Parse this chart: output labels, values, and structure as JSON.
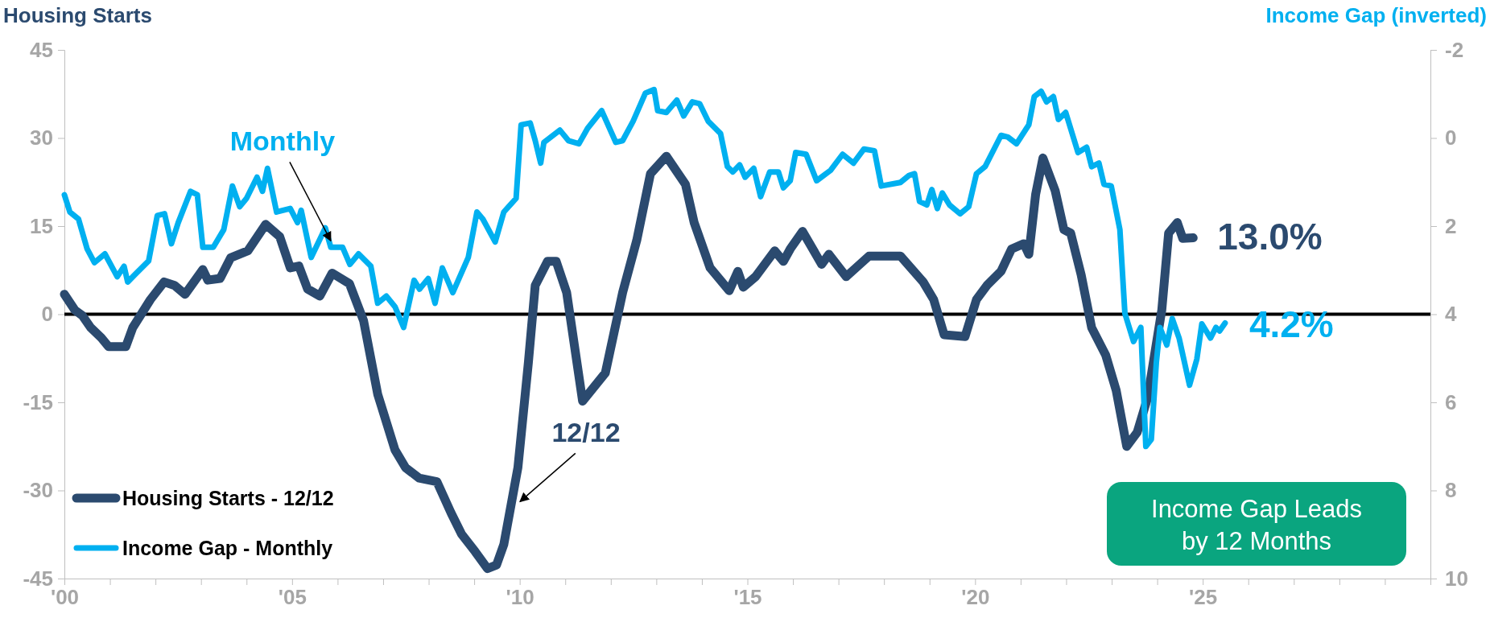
{
  "chart_data": {
    "type": "line",
    "ylabel": "Housing Starts",
    "y2label": "Income Gap (inverted)",
    "xlim": [
      2000,
      2030
    ],
    "xticks": [
      {
        "value": 2000,
        "label": "'00"
      },
      {
        "value": 2001,
        "label": null
      },
      {
        "value": 2002,
        "label": null
      },
      {
        "value": 2003,
        "label": null
      },
      {
        "value": 2004,
        "label": null
      },
      {
        "value": 2005,
        "label": "'05"
      },
      {
        "value": 2006,
        "label": null
      },
      {
        "value": 2007,
        "label": null
      },
      {
        "value": 2008,
        "label": null
      },
      {
        "value": 2009,
        "label": null
      },
      {
        "value": 2010,
        "label": "'10"
      },
      {
        "value": 2011,
        "label": null
      },
      {
        "value": 2012,
        "label": null
      },
      {
        "value": 2013,
        "label": null
      },
      {
        "value": 2014,
        "label": null
      },
      {
        "value": 2015,
        "label": "'15"
      },
      {
        "value": 2016,
        "label": null
      },
      {
        "value": 2017,
        "label": null
      },
      {
        "value": 2018,
        "label": null
      },
      {
        "value": 2019,
        "label": null
      },
      {
        "value": 2020,
        "label": "'20"
      },
      {
        "value": 2021,
        "label": null
      },
      {
        "value": 2022,
        "label": null
      },
      {
        "value": 2023,
        "label": null
      },
      {
        "value": 2024,
        "label": null
      },
      {
        "value": 2025,
        "label": "'25"
      },
      {
        "value": 2026,
        "label": null
      },
      {
        "value": 2027,
        "label": null
      },
      {
        "value": 2028,
        "label": null
      },
      {
        "value": 2029,
        "label": null
      },
      {
        "value": 2030,
        "label": null
      }
    ],
    "ylim": [
      -45,
      45
    ],
    "yticks": [
      -45,
      -30,
      -15,
      0,
      15,
      30,
      45
    ],
    "y2lim": [
      10,
      -2
    ],
    "y2ticks": [
      -2,
      0,
      2,
      4,
      6,
      8,
      10
    ],
    "grid": false,
    "legend": "bottom left",
    "ref_lines": [
      {
        "axis": "y",
        "value": 0,
        "color": "#000000"
      }
    ],
    "annotations": [
      {
        "text": "Monthly",
        "x": 2005.85,
        "y": 11.4
      },
      {
        "text": "12/12",
        "x": 2009.9,
        "y": -33
      },
      "Income Gap Leads by 12 Months"
    ],
    "series": [
      {
        "name": "Housing Starts - 12/12",
        "color": "#2b4a6f",
        "x": [
          2000.0,
          2000.23,
          2000.39,
          2000.58,
          2000.81,
          2000.97,
          2001.35,
          2001.5,
          2001.89,
          2002.19,
          2002.42,
          2002.65,
          2003.04,
          2003.15,
          2003.42,
          2003.65,
          2004.03,
          2004.42,
          2004.73,
          2004.96,
          2005.15,
          2005.34,
          2005.61,
          2005.88,
          2006.26,
          2006.57,
          2006.88,
          2007.26,
          2007.49,
          2007.79,
          2008.18,
          2008.49,
          2008.72,
          2009.02,
          2009.29,
          2009.49,
          2009.65,
          2009.96,
          2010.19,
          2010.34,
          2010.61,
          2010.8,
          2011.03,
          2011.38,
          2011.88,
          2012.26,
          2012.57,
          2012.87,
          2013.22,
          2013.64,
          2013.83,
          2014.18,
          2014.6,
          2014.79,
          2014.91,
          2015.18,
          2015.6,
          2015.79,
          2015.94,
          2016.21,
          2016.63,
          2016.79,
          2017.17,
          2017.67,
          2018.36,
          2018.86,
          2019.09,
          2019.32,
          2019.78,
          2020.03,
          2020.26,
          2020.57,
          2020.8,
          2021.07,
          2021.18,
          2021.33,
          2021.49,
          2021.76,
          2021.95,
          2022.1,
          2022.33,
          2022.56,
          2022.87,
          2023.1,
          2023.33,
          2023.56,
          2023.79,
          2024.1,
          2024.25,
          2024.44,
          2024.56,
          2024.79
        ],
        "values": [
          3.4,
          0.7,
          -0.2,
          -2.3,
          -4.0,
          -5.5,
          -5.5,
          -2.3,
          2.5,
          5.5,
          4.9,
          3.4,
          7.6,
          5.8,
          6.1,
          9.6,
          10.8,
          15.3,
          13.2,
          7.9,
          8.2,
          4.3,
          3.1,
          7.0,
          5.2,
          -1.1,
          -13.6,
          -23.1,
          -26.1,
          -27.9,
          -28.5,
          -33.8,
          -37.4,
          -40.4,
          -43.3,
          -42.7,
          -39.2,
          -26.1,
          -8.2,
          4.9,
          9.0,
          9.0,
          3.7,
          -14.8,
          -10.0,
          3.7,
          12.6,
          23.9,
          26.9,
          22.1,
          15.6,
          7.9,
          4.0,
          7.3,
          4.6,
          6.4,
          10.8,
          9.0,
          11.1,
          14.1,
          8.5,
          10.2,
          6.4,
          9.9,
          9.9,
          5.5,
          2.5,
          -3.5,
          -3.8,
          2.5,
          4.9,
          7.3,
          11.1,
          12.0,
          10.2,
          20.4,
          26.6,
          21.0,
          14.4,
          13.8,
          6.7,
          -2.3,
          -7.0,
          -13.0,
          -22.5,
          -20.1,
          -14.2,
          0.7,
          13.8,
          15.6,
          12.9,
          13.0
        ],
        "value_labels": [
          null,
          null,
          null,
          null,
          null,
          null,
          null,
          null,
          null,
          null,
          null,
          null,
          null,
          null,
          null,
          null,
          null,
          null,
          null,
          null,
          null,
          null,
          null,
          null,
          null,
          null,
          null,
          null,
          null,
          null,
          null,
          null,
          null,
          null,
          null,
          null,
          null,
          null,
          null,
          null,
          null,
          null,
          null,
          null,
          null,
          null,
          null,
          null,
          null,
          null,
          null,
          null,
          null,
          null,
          null,
          null,
          null,
          null,
          null,
          null,
          null,
          null,
          null,
          null,
          null,
          null,
          null,
          null,
          null,
          null,
          null,
          null,
          null,
          null,
          null,
          null,
          null,
          null,
          null,
          null,
          null,
          null,
          null,
          null,
          null,
          null,
          null,
          null,
          null,
          null,
          null,
          "13.0%"
        ]
      },
      {
        "name": "Income Gap - Monthly",
        "color": "#00b0f0",
        "axis": "y2",
        "x": [
          2000.0,
          2000.12,
          2000.31,
          2000.5,
          2000.66,
          2000.89,
          2001.16,
          2001.31,
          2001.39,
          2001.54,
          2001.85,
          2002.04,
          2002.2,
          2002.35,
          2002.5,
          2002.77,
          2002.92,
          2003.04,
          2003.27,
          2003.5,
          2003.69,
          2003.85,
          2004.0,
          2004.23,
          2004.35,
          2004.46,
          2004.66,
          2004.96,
          2005.12,
          2005.2,
          2005.42,
          2005.73,
          2005.85,
          2006.11,
          2006.27,
          2006.46,
          2006.73,
          2006.88,
          2007.07,
          2007.26,
          2007.45,
          2007.68,
          2007.8,
          2007.99,
          2008.14,
          2008.3,
          2008.53,
          2008.87,
          2009.06,
          2009.19,
          2009.46,
          2009.65,
          2009.92,
          2010.03,
          2010.23,
          2010.34,
          2010.46,
          2010.53,
          2010.88,
          2011.07,
          2011.3,
          2011.49,
          2011.8,
          2012.11,
          2012.26,
          2012.49,
          2012.76,
          2012.95,
          2013.03,
          2013.22,
          2013.45,
          2013.6,
          2013.79,
          2013.95,
          2014.14,
          2014.41,
          2014.56,
          2014.68,
          2014.83,
          2014.95,
          2015.14,
          2015.29,
          2015.49,
          2015.68,
          2015.79,
          2015.94,
          2016.06,
          2016.29,
          2016.52,
          2016.83,
          2017.09,
          2017.33,
          2017.56,
          2017.79,
          2017.94,
          2018.36,
          2018.55,
          2018.67,
          2018.78,
          2018.94,
          2019.05,
          2019.17,
          2019.28,
          2019.44,
          2019.67,
          2019.86,
          2020.03,
          2020.22,
          2020.57,
          2020.72,
          2020.91,
          2021.18,
          2021.3,
          2021.45,
          2021.57,
          2021.72,
          2021.83,
          2021.99,
          2022.26,
          2022.45,
          2022.56,
          2022.72,
          2022.83,
          2022.99,
          2023.18,
          2023.29,
          2023.48,
          2023.64,
          2023.75,
          2023.87,
          2023.98,
          2024.06,
          2024.21,
          2024.33,
          2024.48,
          2024.71,
          2024.87,
          2024.98,
          2025.17,
          2025.29,
          2025.37,
          2025.49
        ],
        "values": [
          1.29,
          1.68,
          1.84,
          2.52,
          2.83,
          2.63,
          3.15,
          2.91,
          3.27,
          3.11,
          2.79,
          1.76,
          1.72,
          2.4,
          1.92,
          1.21,
          1.29,
          2.48,
          2.48,
          2.08,
          1.09,
          1.56,
          1.37,
          0.89,
          1.21,
          0.69,
          1.68,
          1.6,
          1.92,
          1.64,
          2.71,
          2.04,
          2.48,
          2.48,
          2.87,
          2.63,
          2.91,
          3.75,
          3.59,
          3.83,
          4.3,
          3.23,
          3.43,
          3.19,
          3.75,
          2.95,
          3.51,
          2.71,
          1.68,
          1.84,
          2.36,
          1.68,
          1.37,
          -0.3,
          -0.34,
          0.06,
          0.57,
          0.1,
          -0.18,
          0.06,
          0.13,
          -0.22,
          -0.62,
          0.1,
          0.06,
          -0.38,
          -1.02,
          -1.1,
          -0.62,
          -0.58,
          -0.86,
          -0.5,
          -0.82,
          -0.78,
          -0.38,
          -0.1,
          0.65,
          0.77,
          0.61,
          0.89,
          0.69,
          1.33,
          0.77,
          0.77,
          1.13,
          0.97,
          0.33,
          0.37,
          0.97,
          0.73,
          0.37,
          0.57,
          0.25,
          0.29,
          1.09,
          1.01,
          0.85,
          0.81,
          1.44,
          1.52,
          1.17,
          1.6,
          1.25,
          1.52,
          1.72,
          1.56,
          0.81,
          0.65,
          -0.06,
          -0.02,
          0.13,
          -0.3,
          -0.94,
          -1.06,
          -0.82,
          -0.94,
          -0.42,
          -0.58,
          0.33,
          0.21,
          0.65,
          0.57,
          1.05,
          1.09,
          2.08,
          3.98,
          4.62,
          4.3,
          7.0,
          6.84,
          5.1,
          4.3,
          4.7,
          4.1,
          4.54,
          5.61,
          5.02,
          4.22,
          4.54,
          4.3,
          4.38,
          4.2
        ],
        "value_labels": [
          null,
          null,
          null,
          null,
          null,
          null,
          null,
          null,
          null,
          null,
          null,
          null,
          null,
          null,
          null,
          null,
          null,
          null,
          null,
          null,
          null,
          null,
          null,
          null,
          null,
          null,
          null,
          null,
          null,
          null,
          null,
          null,
          null,
          null,
          null,
          null,
          null,
          null,
          null,
          null,
          null,
          null,
          null,
          null,
          null,
          null,
          null,
          null,
          null,
          null,
          null,
          null,
          null,
          null,
          null,
          null,
          null,
          null,
          null,
          null,
          null,
          null,
          null,
          null,
          null,
          null,
          null,
          null,
          null,
          null,
          null,
          null,
          null,
          null,
          null,
          null,
          null,
          null,
          null,
          null,
          null,
          null,
          null,
          null,
          null,
          null,
          null,
          null,
          null,
          null,
          null,
          null,
          null,
          null,
          null,
          null,
          null,
          null,
          null,
          null,
          null,
          null,
          null,
          null,
          null,
          null,
          null,
          null,
          null,
          null,
          null,
          null,
          null,
          null,
          null,
          null,
          null,
          null,
          null,
          null,
          null,
          null,
          null,
          null,
          null,
          null,
          null,
          null,
          null,
          null,
          null,
          null,
          null,
          null,
          null,
          null,
          null,
          null,
          null,
          null,
          null,
          "4.2%"
        ]
      }
    ]
  }
}
